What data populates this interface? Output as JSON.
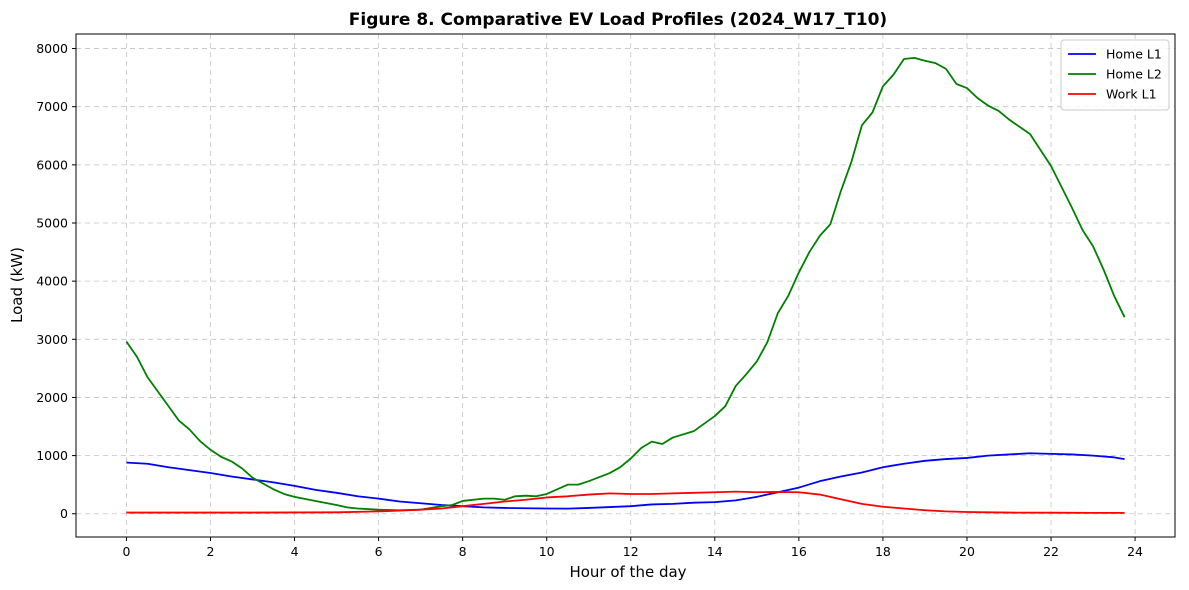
{
  "chart_data": {
    "type": "line",
    "title": "Figure 8. Comparative EV Load Profiles (2024_W17_T10)",
    "xlabel": "Hour of the day",
    "ylabel": "Load (kW)",
    "xlim": [
      -1.2,
      24.95
    ],
    "ylim": [
      -400,
      8250
    ],
    "xticks": [
      0,
      2,
      4,
      6,
      8,
      10,
      12,
      14,
      16,
      18,
      20,
      22,
      24
    ],
    "yticks": [
      0,
      1000,
      2000,
      3000,
      4000,
      5000,
      6000,
      7000,
      8000
    ],
    "grid": true,
    "legend_position": "top-right",
    "series": [
      {
        "name": "Home L1",
        "color": "#0000ff",
        "points": [
          [
            0,
            880
          ],
          [
            0.5,
            860
          ],
          [
            1,
            800
          ],
          [
            1.5,
            750
          ],
          [
            2,
            700
          ],
          [
            2.5,
            640
          ],
          [
            3,
            590
          ],
          [
            3.5,
            540
          ],
          [
            4,
            480
          ],
          [
            4.5,
            410
          ],
          [
            5,
            360
          ],
          [
            5.5,
            300
          ],
          [
            6,
            260
          ],
          [
            6.5,
            210
          ],
          [
            7,
            180
          ],
          [
            7.5,
            150
          ],
          [
            8,
            130
          ],
          [
            8.5,
            110
          ],
          [
            9,
            100
          ],
          [
            9.5,
            95
          ],
          [
            10,
            90
          ],
          [
            10.5,
            88
          ],
          [
            11,
            100
          ],
          [
            11.5,
            115
          ],
          [
            12,
            130
          ],
          [
            12.5,
            160
          ],
          [
            13,
            170
          ],
          [
            13.5,
            190
          ],
          [
            14,
            200
          ],
          [
            14.5,
            230
          ],
          [
            15,
            290
          ],
          [
            15.5,
            370
          ],
          [
            16,
            450
          ],
          [
            16.5,
            560
          ],
          [
            17,
            640
          ],
          [
            17.5,
            710
          ],
          [
            18,
            800
          ],
          [
            18.5,
            860
          ],
          [
            19,
            910
          ],
          [
            19.5,
            940
          ],
          [
            20,
            960
          ],
          [
            20.5,
            1000
          ],
          [
            21,
            1020
          ],
          [
            21.5,
            1040
          ],
          [
            22,
            1030
          ],
          [
            22.5,
            1020
          ],
          [
            23,
            1000
          ],
          [
            23.5,
            970
          ],
          [
            23.75,
            940
          ]
        ]
      },
      {
        "name": "Home L2",
        "color": "#008000",
        "points": [
          [
            0,
            2960
          ],
          [
            0.25,
            2700
          ],
          [
            0.5,
            2350
          ],
          [
            0.75,
            2100
          ],
          [
            1,
            1850
          ],
          [
            1.25,
            1600
          ],
          [
            1.5,
            1450
          ],
          [
            1.75,
            1250
          ],
          [
            2,
            1100
          ],
          [
            2.25,
            980
          ],
          [
            2.5,
            900
          ],
          [
            2.75,
            780
          ],
          [
            3,
            620
          ],
          [
            3.25,
            520
          ],
          [
            3.5,
            420
          ],
          [
            3.75,
            340
          ],
          [
            4,
            290
          ],
          [
            4.5,
            220
          ],
          [
            5,
            150
          ],
          [
            5.25,
            110
          ],
          [
            5.5,
            90
          ],
          [
            6,
            70
          ],
          [
            6.5,
            60
          ],
          [
            7,
            70
          ],
          [
            7.5,
            130
          ],
          [
            7.75,
            150
          ],
          [
            8,
            220
          ],
          [
            8.5,
            260
          ],
          [
            8.75,
            260
          ],
          [
            9,
            240
          ],
          [
            9.25,
            300
          ],
          [
            9.5,
            310
          ],
          [
            9.75,
            300
          ],
          [
            10,
            340
          ],
          [
            10.5,
            500
          ],
          [
            10.75,
            500
          ],
          [
            11,
            560
          ],
          [
            11.5,
            700
          ],
          [
            11.75,
            800
          ],
          [
            12,
            950
          ],
          [
            12.25,
            1130
          ],
          [
            12.5,
            1240
          ],
          [
            12.75,
            1200
          ],
          [
            13,
            1310
          ],
          [
            13.5,
            1420
          ],
          [
            14,
            1680
          ],
          [
            14.25,
            1850
          ],
          [
            14.5,
            2200
          ],
          [
            14.75,
            2400
          ],
          [
            15,
            2620
          ],
          [
            15.25,
            2950
          ],
          [
            15.5,
            3450
          ],
          [
            15.75,
            3750
          ],
          [
            16,
            4150
          ],
          [
            16.25,
            4500
          ],
          [
            16.5,
            4780
          ],
          [
            16.75,
            4980
          ],
          [
            17,
            5550
          ],
          [
            17.25,
            6050
          ],
          [
            17.5,
            6680
          ],
          [
            17.75,
            6900
          ],
          [
            18,
            7350
          ],
          [
            18.25,
            7550
          ],
          [
            18.5,
            7820
          ],
          [
            18.75,
            7840
          ],
          [
            19,
            7790
          ],
          [
            19.25,
            7750
          ],
          [
            19.5,
            7650
          ],
          [
            19.75,
            7390
          ],
          [
            20,
            7320
          ],
          [
            20.25,
            7150
          ],
          [
            20.5,
            7020
          ],
          [
            20.75,
            6930
          ],
          [
            21,
            6780
          ],
          [
            21.5,
            6530
          ],
          [
            22,
            5980
          ],
          [
            22.5,
            5260
          ],
          [
            22.75,
            4880
          ],
          [
            23,
            4600
          ],
          [
            23.25,
            4200
          ],
          [
            23.5,
            3750
          ],
          [
            23.75,
            3380
          ]
        ]
      },
      {
        "name": "Work L1",
        "color": "#ff0000",
        "points": [
          [
            0,
            20
          ],
          [
            1,
            20
          ],
          [
            2,
            20
          ],
          [
            3,
            20
          ],
          [
            4,
            22
          ],
          [
            5,
            25
          ],
          [
            6,
            40
          ],
          [
            7,
            70
          ],
          [
            7.5,
            90
          ],
          [
            8,
            130
          ],
          [
            8.5,
            170
          ],
          [
            9,
            210
          ],
          [
            9.5,
            240
          ],
          [
            10,
            280
          ],
          [
            10.5,
            300
          ],
          [
            11,
            330
          ],
          [
            11.5,
            350
          ],
          [
            12,
            340
          ],
          [
            12.5,
            340
          ],
          [
            13,
            350
          ],
          [
            13.5,
            360
          ],
          [
            14,
            370
          ],
          [
            14.5,
            380
          ],
          [
            15,
            370
          ],
          [
            15.5,
            375
          ],
          [
            16,
            370
          ],
          [
            16.5,
            330
          ],
          [
            17,
            250
          ],
          [
            17.5,
            170
          ],
          [
            18,
            120
          ],
          [
            18.5,
            90
          ],
          [
            19,
            60
          ],
          [
            19.5,
            40
          ],
          [
            20,
            30
          ],
          [
            20.5,
            25
          ],
          [
            21,
            20
          ],
          [
            22,
            18
          ],
          [
            23,
            15
          ],
          [
            23.75,
            15
          ]
        ]
      }
    ]
  }
}
